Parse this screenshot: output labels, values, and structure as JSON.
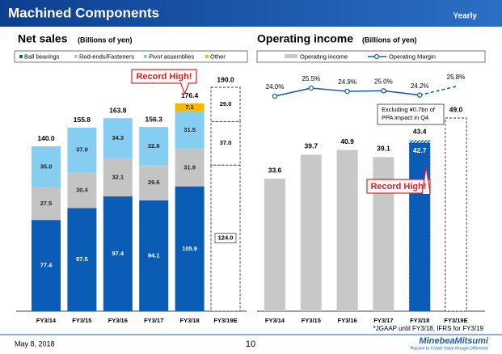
{
  "header": {
    "title": "Machined Components",
    "period": "Yearly"
  },
  "chart_data": [
    {
      "type": "stacked_bar",
      "title": "Net sales",
      "subtitle": "(Billions of yen)",
      "categories": [
        "FY3/14",
        "FY3/15",
        "FY3/16",
        "FY3/17",
        "FY3/18",
        "FY3/19E"
      ],
      "series": [
        {
          "name": "Ball bearings",
          "color": "#0a5cb5",
          "values": [
            77.4,
            87.5,
            97.4,
            94.1,
            105.9,
            null
          ],
          "value_labels": [
            "77.4",
            "87.5",
            "97.4",
            "94.1",
            "105.9",
            null
          ]
        },
        {
          "name": "Rod-ends/Fasteners",
          "color": "#c4c4c4",
          "values": [
            27.5,
            30.4,
            32.1,
            29.6,
            31.9,
            null
          ],
          "value_labels": [
            "27.5",
            "30.4",
            "32.1",
            "29.6",
            "31.9",
            null
          ]
        },
        {
          "name": "Pivot assemblies",
          "color": "#86cdf2",
          "values": [
            35.0,
            37.9,
            34.3,
            32.6,
            31.5,
            null
          ],
          "value_labels": [
            "35.0",
            "37.9",
            "34.3",
            "32.6",
            "31.5",
            null
          ]
        },
        {
          "name": "Other",
          "color": "#f5b800",
          "values": [
            null,
            null,
            null,
            null,
            7.1,
            null
          ],
          "value_labels": [
            null,
            null,
            null,
            null,
            "7.1",
            null
          ]
        }
      ],
      "forecast": {
        "values": [
          124.0,
          37.0,
          29.0
        ],
        "value_labels": [
          "124.0",
          "37.0",
          "29.0"
        ]
      },
      "totals": {
        "values": [
          140.0,
          155.8,
          163.8,
          156.3,
          176.4,
          190.0
        ],
        "value_labels": [
          "140.0",
          "155.8",
          "163.8",
          "156.3",
          "176.4",
          "190.0"
        ]
      },
      "annotation": "Record High!"
    },
    {
      "type": "bar_line",
      "title": "Operating income",
      "subtitle": "(Billions of yen)",
      "categories": [
        "FY3/14",
        "FY3/15",
        "FY3/16",
        "FY3/17",
        "FY3/18",
        "FY3/19E"
      ],
      "series": [
        {
          "name": "Operating income",
          "color": "#c8c8c8",
          "colors": [
            "#c8c8c8",
            "#c8c8c8",
            "#c8c8c8",
            "#c8c8c8",
            "#0a5cb5",
            "#ffffff"
          ],
          "styles": [
            "solid",
            "solid",
            "solid",
            "solid",
            "solid",
            "dashed"
          ],
          "values": [
            33.6,
            39.7,
            40.9,
            39.1,
            43.4,
            49.0
          ],
          "value_labels": [
            "33.6",
            "39.7",
            "40.9",
            "39.1",
            "43.4",
            "49.0"
          ],
          "inner_values": [
            null,
            null,
            null,
            null,
            42.7,
            null
          ]
        },
        {
          "name": "Operating Margin",
          "color": "#1a5fa8",
          "axis": "y2",
          "styles": [
            "solid",
            "solid",
            "solid",
            "solid",
            "solid",
            "dashed"
          ],
          "values": [
            24.0,
            25.5,
            24.9,
            25.0,
            24.2,
            25.8
          ],
          "value_labels": [
            "24.0%",
            "25.5%",
            "24.9%",
            "25.0%",
            "24.2%",
            "25.8%"
          ]
        }
      ],
      "note": [
        "Excluding ¥0.7bn of",
        "PPA impact in Q4"
      ],
      "annotation": "Record High!"
    }
  ],
  "footer": {
    "note": "*JGAAP until FY3/18, IFRS for FY3/19",
    "date": "May 8, 2018",
    "page": "10",
    "brand": "MinebeaMitsumi",
    "tagline": "Passion to Create Value through Difference"
  }
}
